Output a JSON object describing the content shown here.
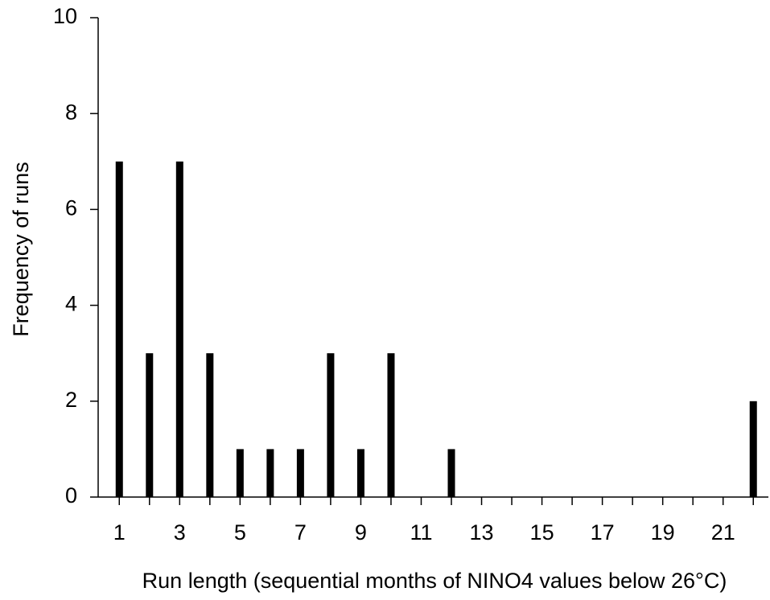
{
  "chart_data": {
    "type": "bar",
    "x_label": "Run length (sequential months of NINO4 values below 26°C)",
    "y_label": "Frequency of runs",
    "x": [
      1,
      2,
      3,
      4,
      5,
      6,
      7,
      8,
      9,
      10,
      12,
      22
    ],
    "values": [
      7,
      3,
      7,
      3,
      1,
      1,
      1,
      3,
      1,
      3,
      1,
      2
    ],
    "color": "#000000",
    "xlim": [
      0.3,
      22.5
    ],
    "xticks": [
      1,
      3,
      5,
      7,
      9,
      11,
      13,
      15,
      17,
      19,
      21
    ],
    "xminorticks": [
      2,
      4,
      6,
      8,
      10,
      12,
      14,
      16,
      18,
      20,
      22
    ],
    "ylim": [
      0,
      10
    ],
    "yticks": [
      0,
      2,
      4,
      6,
      8,
      10
    ],
    "grid": false
  }
}
